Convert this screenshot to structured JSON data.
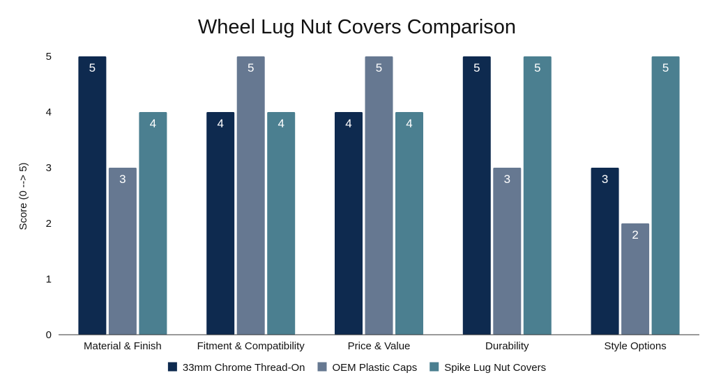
{
  "chart_data": {
    "type": "bar",
    "title": "Wheel Lug Nut Covers Comparison",
    "xlabel": "",
    "ylabel": "Score (0 --> 5)",
    "ylim": [
      0,
      5
    ],
    "yticks": [
      "0",
      "1",
      "2",
      "3",
      "4",
      "5"
    ],
    "grid": false,
    "legend_position": "bottom",
    "categories": [
      "Material & Finish",
      "Fitment & Compatibility",
      "Price & Value",
      "Durability",
      "Style Options"
    ],
    "series": [
      {
        "name": "33mm Chrome Thread-On",
        "color": "#0e2a4f",
        "values": [
          5,
          4,
          4,
          5,
          3
        ]
      },
      {
        "name": "OEM Plastic Caps",
        "color": "#667891",
        "values": [
          3,
          5,
          5,
          3,
          2
        ]
      },
      {
        "name": "Spike Lug Nut Covers",
        "color": "#4b7f90",
        "values": [
          4,
          4,
          4,
          5,
          5
        ]
      }
    ]
  }
}
